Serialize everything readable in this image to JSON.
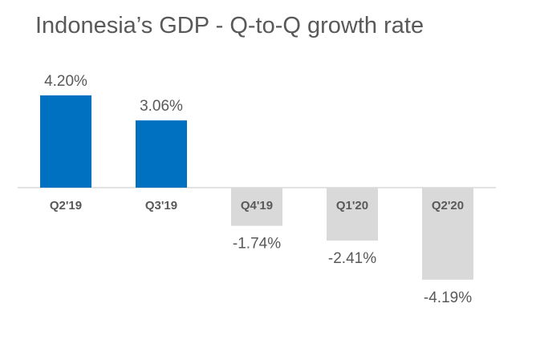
{
  "chart_data": {
    "type": "bar",
    "title": "Indonesia’s GDP - Q-to-Q growth rate",
    "categories": [
      "Q2'19",
      "Q3'19",
      "Q4'19",
      "Q1'20",
      "Q2'20"
    ],
    "values": [
      4.2,
      3.06,
      -1.74,
      -2.41,
      -4.19
    ],
    "data_labels": [
      "4.20%",
      "3.06%",
      "-1.74%",
      "-2.41%",
      "-4.19%"
    ],
    "xlabel": "",
    "ylabel": "",
    "ylim": [
      -4.19,
      4.2
    ],
    "grid": false,
    "legend": "none",
    "colors": {
      "positive": "#0070C0",
      "negative": "#D9D9D9",
      "axis": "#D9D9D9",
      "text": "#595959"
    }
  }
}
